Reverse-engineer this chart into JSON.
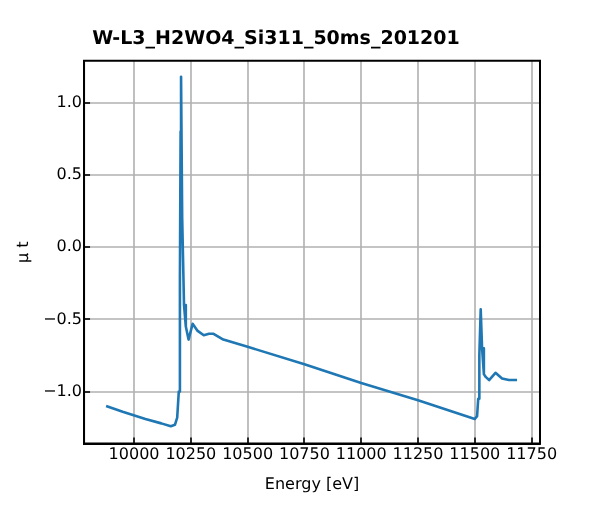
{
  "chart_data": {
    "type": "line",
    "title": "W-L3_H2WO4_Si311_50ms_201201",
    "xlabel": "Energy [eV]",
    "ylabel": "μ t",
    "x": [
      9877,
      9950,
      10050,
      10120,
      10162,
      10180,
      10190,
      10197,
      10202,
      10205,
      10207,
      10212,
      10220,
      10228,
      10240,
      10258,
      10280,
      10307,
      10330,
      10350,
      10393,
      10500,
      10750,
      11000,
      11250,
      11500,
      11510,
      11515,
      11520,
      11526,
      11532,
      11540,
      11549,
      11563,
      11591,
      11620,
      11650,
      11686
    ],
    "series": [
      {
        "color": "#1f77b4",
        "values": [
          -1.1,
          -1.14,
          -1.19,
          -1.22,
          -1.24,
          -1.23,
          -1.18,
          -1.0,
          -0.2,
          0.8,
          1.18,
          0.2,
          -0.4,
          -0.55,
          -0.64,
          -0.53,
          -0.58,
          -0.61,
          -0.6,
          -0.6,
          -0.64,
          -0.69,
          -0.81,
          -0.94,
          -1.06,
          -1.19,
          -1.17,
          -1.05,
          -0.75,
          -0.43,
          -0.7,
          -0.88,
          -0.9,
          -0.92,
          -0.87,
          -0.91,
          -0.92,
          -0.92
        ]
      }
    ],
    "xlim": [
      9780,
      11787
    ],
    "xticks": [
      10000,
      10250,
      10500,
      10750,
      11000,
      11250,
      11500,
      11750
    ],
    "ylim": [
      -1.36,
      1.29
    ],
    "yticks": [
      {
        "value": -1.0,
        "label": "−1.0"
      },
      {
        "value": -0.5,
        "label": "−0.5"
      },
      {
        "value": 0.0,
        "label": "0.0"
      },
      {
        "value": 0.5,
        "label": "0.5"
      },
      {
        "value": 1.0,
        "label": "1.0"
      }
    ],
    "grid": true,
    "legend": false,
    "marker": "none",
    "line_style": "solid"
  }
}
